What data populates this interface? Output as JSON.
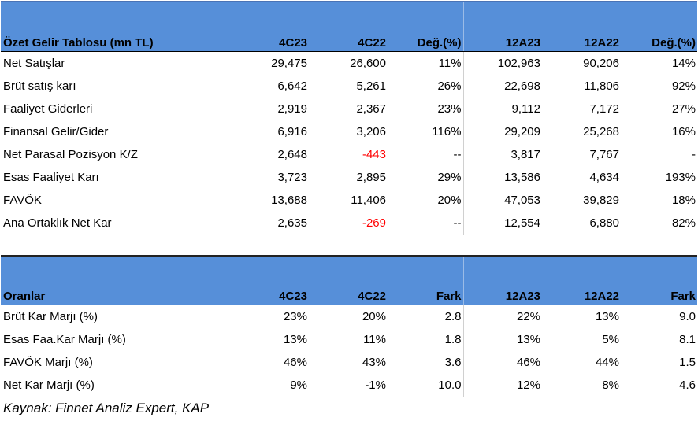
{
  "income": {
    "headers": [
      "Özet Gelir Tablosu (mn TL)",
      "4C23",
      "4C22",
      "Değ.(%)",
      "12A23",
      "12A22",
      "Değ.(%)"
    ],
    "rows": [
      [
        "Net Satışlar",
        "29,475",
        "26,600",
        "11%",
        "102,963",
        "90,206",
        "14%"
      ],
      [
        "Brüt satış karı",
        "6,642",
        "5,261",
        "26%",
        "22,698",
        "11,806",
        "92%"
      ],
      [
        "Faaliyet Giderleri",
        "2,919",
        "2,367",
        "23%",
        "9,112",
        "7,172",
        "27%"
      ],
      [
        "Finansal Gelir/Gider",
        "6,916",
        "3,206",
        "116%",
        "29,209",
        "25,268",
        "16%"
      ],
      [
        "Net Parasal Pozisyon K/Z",
        "2,648",
        "-443",
        "--",
        "3,817",
        "7,767",
        "-"
      ],
      [
        "Esas Faaliyet Karı",
        "3,723",
        "2,895",
        "29%",
        "13,586",
        "4,634",
        "193%"
      ],
      [
        "FAVÖK",
        "13,688",
        "11,406",
        "20%",
        "47,053",
        "39,829",
        "18%"
      ],
      [
        "Ana Ortaklık Net Kar",
        "2,635",
        "-269",
        "--",
        "12,554",
        "6,880",
        "82%"
      ]
    ]
  },
  "ratios": {
    "headers": [
      "Oranlar",
      "4C23",
      "4C22",
      "Fark",
      "12A23",
      "12A22",
      "Fark"
    ],
    "rows": [
      [
        "Brüt Kar Marjı (%)",
        "23%",
        "20%",
        "2.8",
        "22%",
        "13%",
        "9.0"
      ],
      [
        "Esas Faa.Kar Marjı (%)",
        "13%",
        "11%",
        "1.8",
        "13%",
        "5%",
        "8.1"
      ],
      [
        "FAVÖK Marjı (%)",
        "46%",
        "43%",
        "3.6",
        "46%",
        "44%",
        "1.5"
      ],
      [
        "Net Kar Marjı (%)",
        "9%",
        "-1%",
        "10.0",
        "12%",
        "8%",
        "4.6"
      ]
    ]
  },
  "source": "Kaynak: Finnet Analiz Expert, KAP",
  "colors": {
    "header_bg": "#568fd9",
    "negative": "#ff0000"
  }
}
